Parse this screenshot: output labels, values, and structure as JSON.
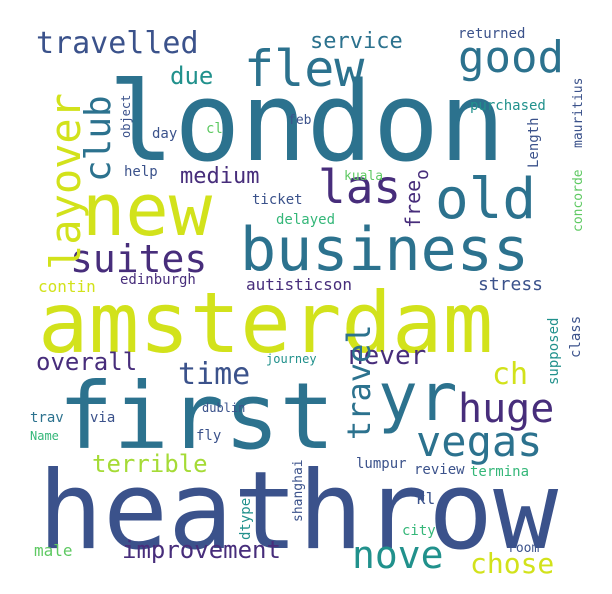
{
  "word_cloud": {
    "background": "#ffffff",
    "palette": {
      "yellow": "#d2e21b",
      "lime": "#a5db36",
      "green": "#5ec962",
      "teal_green": "#35b779",
      "teal": "#21918c",
      "blue_teal": "#2c728e",
      "steel_blue": "#3b528b",
      "indigo": "#472d7b",
      "purple": "#440154"
    },
    "words": [
      {
        "text": "heathrow",
        "color": "steel_blue",
        "vertical": false
      },
      {
        "text": "amsterdam",
        "color": "yellow",
        "vertical": false
      },
      {
        "text": "london",
        "color": "blue_teal",
        "vertical": false
      },
      {
        "text": "first",
        "color": "blue_teal",
        "vertical": false
      },
      {
        "text": "new",
        "color": "yellow",
        "vertical": false
      },
      {
        "text": "business",
        "color": "blue_teal",
        "vertical": false
      },
      {
        "text": "yr",
        "color": "blue_teal",
        "vertical": false
      },
      {
        "text": "old",
        "color": "blue_teal",
        "vertical": false
      },
      {
        "text": "vegas",
        "color": "blue_teal",
        "vertical": false
      },
      {
        "text": "flew",
        "color": "blue_teal",
        "vertical": false
      },
      {
        "text": "good",
        "color": "blue_teal",
        "vertical": false
      },
      {
        "text": "nove",
        "color": "teal",
        "vertical": false
      },
      {
        "text": "suites",
        "color": "indigo",
        "vertical": false
      },
      {
        "text": "huge",
        "color": "indigo",
        "vertical": false
      },
      {
        "text": "las",
        "color": "indigo",
        "vertical": false
      },
      {
        "text": "travelled",
        "color": "steel_blue",
        "vertical": false
      },
      {
        "text": "improvement",
        "color": "indigo",
        "vertical": false
      },
      {
        "text": "chose",
        "color": "yellow",
        "vertical": false
      },
      {
        "text": "time",
        "color": "steel_blue",
        "vertical": false
      },
      {
        "text": "overall",
        "color": "indigo",
        "vertical": false
      },
      {
        "text": "never",
        "color": "indigo",
        "vertical": false
      },
      {
        "text": "terrible",
        "color": "lime",
        "vertical": false
      },
      {
        "text": "medium",
        "color": "indigo",
        "vertical": false
      },
      {
        "text": "service",
        "color": "blue_teal",
        "vertical": false
      },
      {
        "text": "due",
        "color": "teal",
        "vertical": false
      },
      {
        "text": "ch",
        "color": "yellow",
        "vertical": false
      },
      {
        "text": "layover",
        "color": "yellow",
        "vertical": true
      },
      {
        "text": "club",
        "color": "blue_teal",
        "vertical": true
      },
      {
        "text": "travel",
        "color": "blue_teal",
        "vertical": true
      },
      {
        "text": "free",
        "color": "indigo",
        "vertical": true
      },
      {
        "text": "delayed",
        "color": "teal_green",
        "vertical": false
      },
      {
        "text": "stress",
        "color": "steel_blue",
        "vertical": false
      },
      {
        "text": "edinburgh",
        "color": "indigo",
        "vertical": false
      },
      {
        "text": "autisticson",
        "color": "indigo",
        "vertical": false
      },
      {
        "text": "contin",
        "color": "yellow",
        "vertical": false
      },
      {
        "text": "journey",
        "color": "teal",
        "vertical": false
      },
      {
        "text": "help",
        "color": "steel_blue",
        "vertical": false
      },
      {
        "text": "ticket",
        "color": "steel_blue",
        "vertical": false
      },
      {
        "text": "kuala",
        "color": "green",
        "vertical": false
      },
      {
        "text": "returned",
        "color": "steel_blue",
        "vertical": false
      },
      {
        "text": "purchased",
        "color": "teal",
        "vertical": false
      },
      {
        "text": "feb",
        "color": "steel_blue",
        "vertical": false
      },
      {
        "text": "day",
        "color": "steel_blue",
        "vertical": false
      },
      {
        "text": "cl",
        "color": "green",
        "vertical": false
      },
      {
        "text": "dublin",
        "color": "steel_blue",
        "vertical": false
      },
      {
        "text": "trav",
        "color": "blue_teal",
        "vertical": false
      },
      {
        "text": "via",
        "color": "steel_blue",
        "vertical": false
      },
      {
        "text": "Name",
        "color": "teal_green",
        "vertical": false
      },
      {
        "text": "fly",
        "color": "steel_blue",
        "vertical": false
      },
      {
        "text": "lumpur",
        "color": "steel_blue",
        "vertical": false
      },
      {
        "text": "review",
        "color": "steel_blue",
        "vertical": false
      },
      {
        "text": "termina",
        "color": "teal_green",
        "vertical": false
      },
      {
        "text": "kl",
        "color": "steel_blue",
        "vertical": false
      },
      {
        "text": "city",
        "color": "teal_green",
        "vertical": false
      },
      {
        "text": "room",
        "color": "steel_blue",
        "vertical": false
      },
      {
        "text": "male",
        "color": "green",
        "vertical": false
      },
      {
        "text": "object",
        "color": "steel_blue",
        "vertical": true
      },
      {
        "text": "mauritius",
        "color": "steel_blue",
        "vertical": true
      },
      {
        "text": "Length",
        "color": "steel_blue",
        "vertical": true
      },
      {
        "text": "concorde",
        "color": "green",
        "vertical": true
      },
      {
        "text": "class",
        "color": "steel_blue",
        "vertical": true
      },
      {
        "text": "supposed",
        "color": "teal",
        "vertical": true
      },
      {
        "text": "shanghai",
        "color": "steel_blue",
        "vertical": true
      },
      {
        "text": "dtype",
        "color": "teal",
        "vertical": true
      },
      {
        "text": "o",
        "color": "indigo",
        "vertical": true
      }
    ]
  }
}
